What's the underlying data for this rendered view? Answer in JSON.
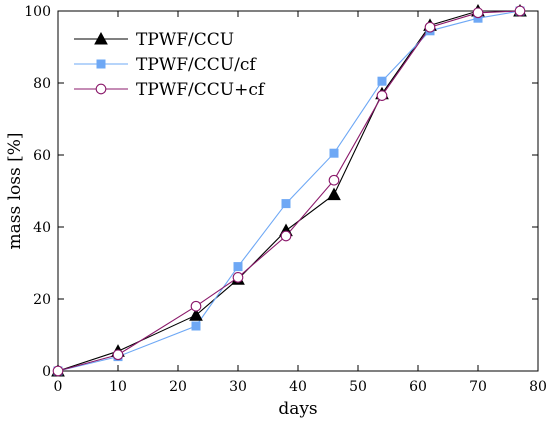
{
  "chart_data": {
    "type": "line",
    "title": "",
    "xlabel": "days",
    "ylabel": "mass loss [%]",
    "xlim": [
      0,
      80
    ],
    "ylim": [
      0,
      100
    ],
    "xticks": [
      0,
      10,
      20,
      30,
      40,
      50,
      60,
      70,
      80
    ],
    "yticks": [
      0,
      20,
      40,
      60,
      80,
      100
    ],
    "grid": false,
    "legend_position": "top-left",
    "series": [
      {
        "name": "TPWF/CCU",
        "color": "#000000",
        "marker": "triangle",
        "x": [
          0,
          10,
          23,
          30,
          38,
          46,
          54,
          62,
          70,
          77
        ],
        "y": [
          0,
          5.5,
          15.5,
          25.5,
          39,
          49,
          77,
          96,
          100,
          100
        ]
      },
      {
        "name": "TPWF/CCU/cf",
        "color": "#6ea8f5",
        "marker": "square",
        "x": [
          0,
          10,
          23,
          30,
          38,
          46,
          54,
          62,
          70,
          77
        ],
        "y": [
          0,
          4,
          12.5,
          29,
          46.5,
          60.5,
          80.5,
          94.5,
          98,
          100
        ]
      },
      {
        "name": "TPWF/CCU+cf",
        "color": "#8b1a6b",
        "marker": "circle",
        "x": [
          0,
          10,
          23,
          30,
          38,
          46,
          54,
          62,
          70,
          77
        ],
        "y": [
          0,
          4.5,
          18,
          26,
          37.5,
          53,
          76.5,
          95.5,
          99.5,
          100
        ]
      }
    ]
  }
}
